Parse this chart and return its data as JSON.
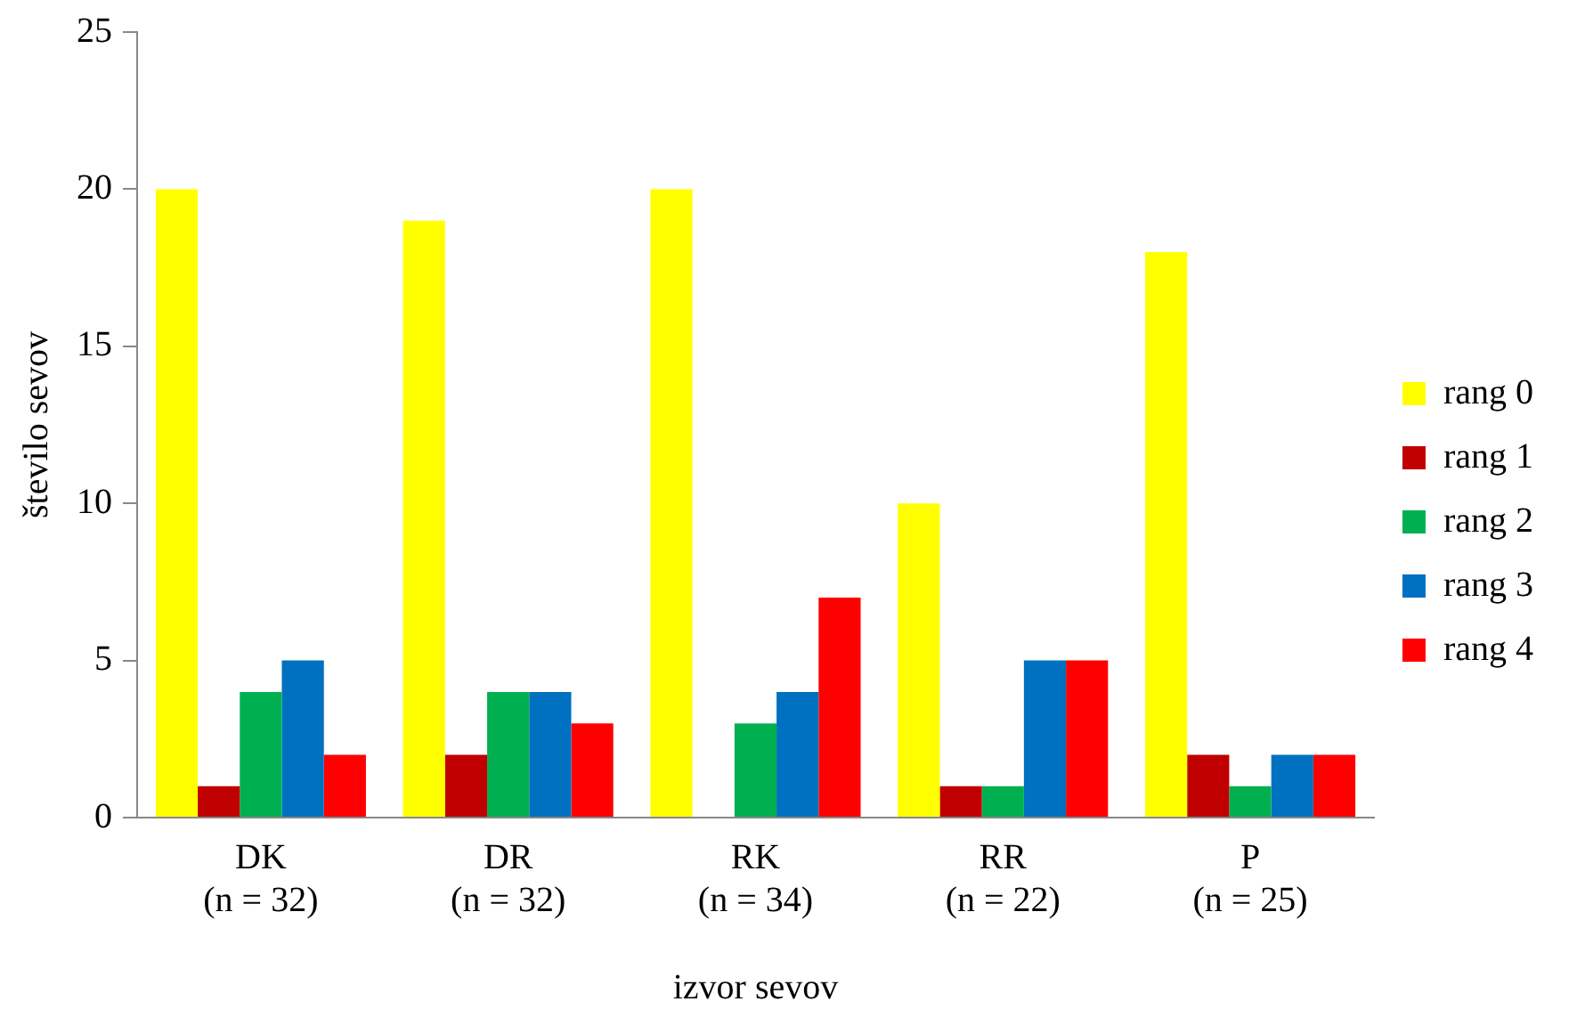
{
  "chart_data": {
    "type": "bar",
    "xlabel": "izvor sevov",
    "ylabel": "število sevov",
    "categories": [
      "DK\n(n = 32)",
      "DR\n(n = 32)",
      "RK\n(n = 34)",
      "RR\n(n = 22)",
      "P\n(n = 25)"
    ],
    "series": [
      {
        "name": "rang 0",
        "color": "#ffff00",
        "values": [
          20,
          19,
          20,
          10,
          18
        ]
      },
      {
        "name": "rang 1",
        "color": "#c00000",
        "values": [
          1,
          2,
          0,
          1,
          2
        ]
      },
      {
        "name": "rang 2",
        "color": "#00b050",
        "values": [
          4,
          4,
          3,
          1,
          1
        ]
      },
      {
        "name": "rang 3",
        "color": "#0070c0",
        "values": [
          5,
          4,
          4,
          5,
          2
        ]
      },
      {
        "name": "rang 4",
        "color": "#ff0000",
        "values": [
          2,
          3,
          7,
          5,
          2
        ]
      }
    ],
    "ylim": [
      0,
      25
    ],
    "yticks": [
      0,
      5,
      10,
      15,
      20,
      25
    ],
    "grid": false,
    "legend": "right"
  }
}
